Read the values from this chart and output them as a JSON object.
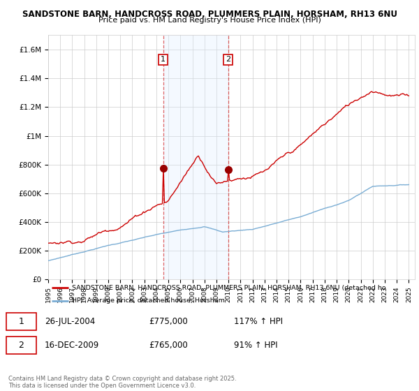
{
  "title_line1": "SANDSTONE BARN, HANDCROSS ROAD, PLUMMERS PLAIN, HORSHAM, RH13 6NU",
  "title_line2": "Price paid vs. HM Land Registry's House Price Index (HPI)",
  "ylim": [
    0,
    1700000
  ],
  "yticks": [
    0,
    200000,
    400000,
    600000,
    800000,
    1000000,
    1200000,
    1400000,
    1600000
  ],
  "ytick_labels": [
    "£0",
    "£200K",
    "£400K",
    "£600K",
    "£800K",
    "£1M",
    "£1.2M",
    "£1.4M",
    "£1.6M"
  ],
  "xtick_years": [
    1995,
    1996,
    1997,
    1998,
    1999,
    2000,
    2001,
    2002,
    2003,
    2004,
    2005,
    2006,
    2007,
    2008,
    2009,
    2010,
    2011,
    2012,
    2013,
    2014,
    2015,
    2016,
    2017,
    2018,
    2019,
    2020,
    2021,
    2022,
    2023,
    2024,
    2025
  ],
  "sale1_x": 2004.57,
  "sale1_y": 775000,
  "sale2_x": 2009.96,
  "sale2_y": 765000,
  "hpi_line_color": "#7aadd4",
  "price_line_color": "#cc0000",
  "sale_marker_color": "#990000",
  "shade_color": "#ddeeff",
  "vline_color": "#cc0000",
  "grid_color": "#cccccc",
  "bg_color": "#ffffff",
  "legend_label_red": "SANDSTONE BARN, HANDCROSS ROAD, PLUMMERS PLAIN, HORSHAM, RH13 6NU (detached ho",
  "legend_label_blue": "HPI: Average price, detached house, Horsham",
  "sale1_date": "26-JUL-2004",
  "sale1_price": "£775,000",
  "sale1_hpi": "117% ↑ HPI",
  "sale2_date": "16-DEC-2009",
  "sale2_price": "£765,000",
  "sale2_hpi": "91% ↑ HPI",
  "footer": "Contains HM Land Registry data © Crown copyright and database right 2025.\nThis data is licensed under the Open Government Licence v3.0."
}
